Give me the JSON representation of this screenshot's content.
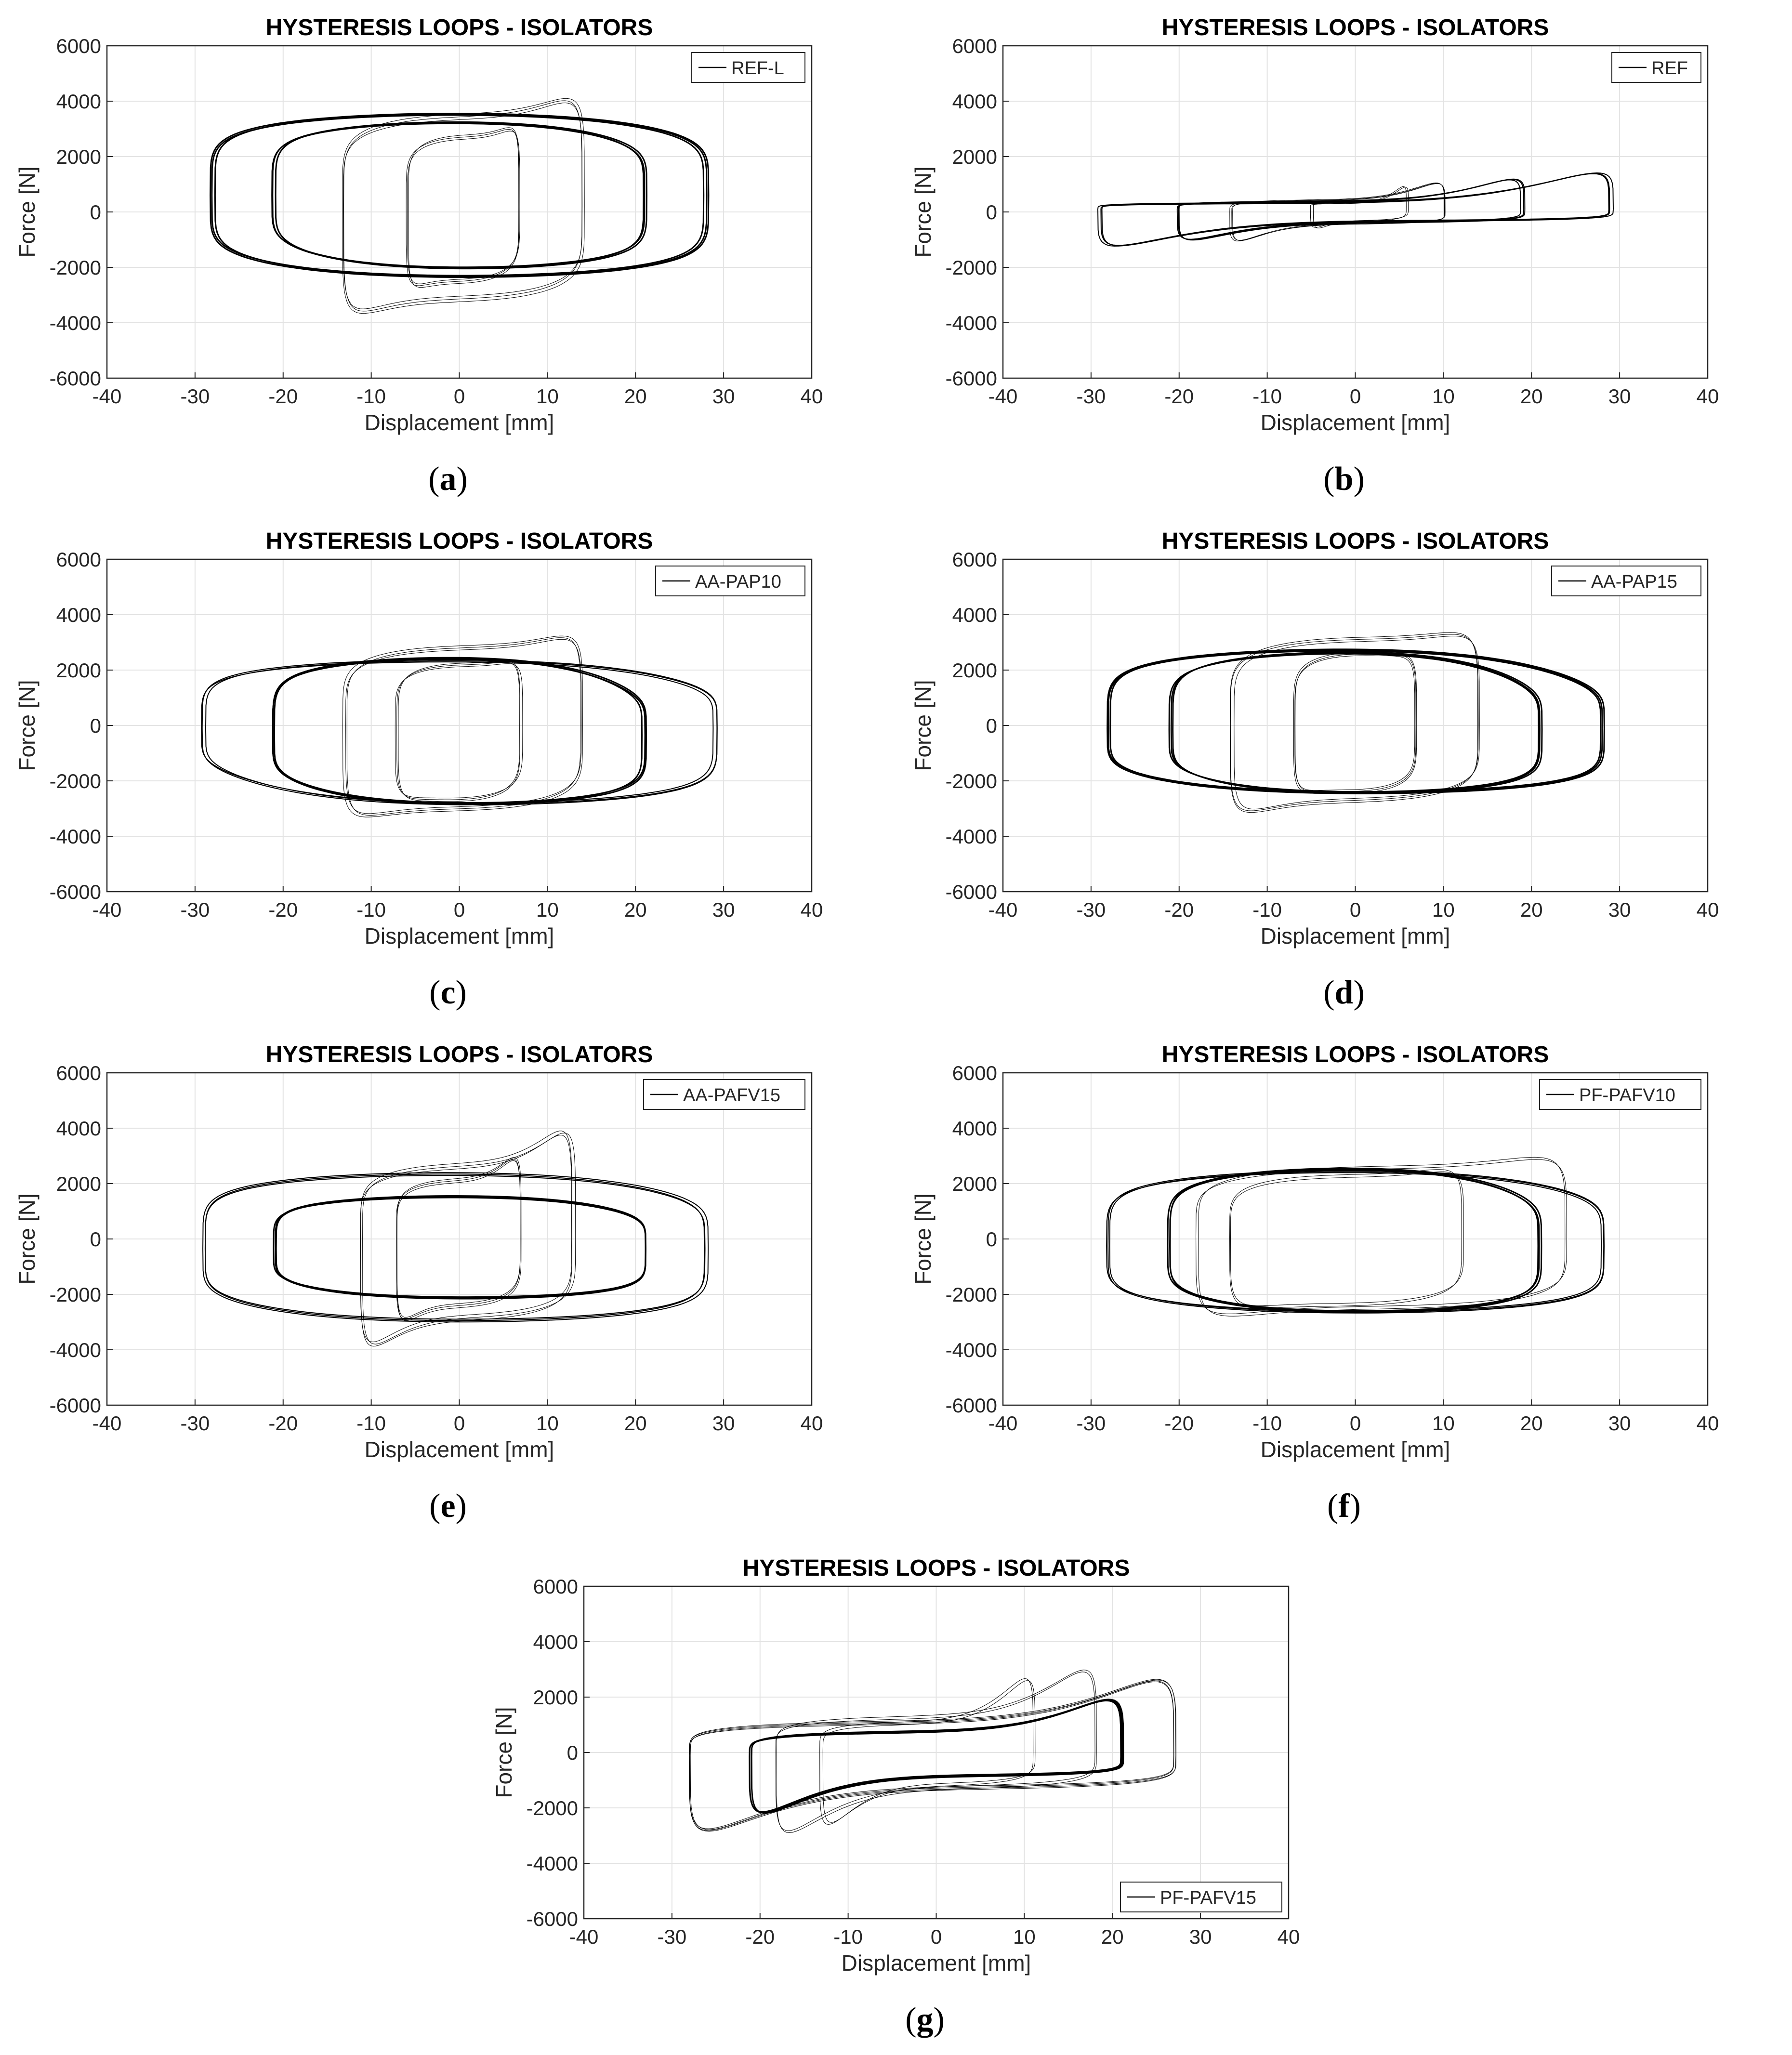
{
  "colors": {
    "line": "#000000",
    "grid": "#e3e3e3",
    "axis": "#262626",
    "background": "#ffffff"
  },
  "chart_data": [
    {
      "id": "a",
      "caption": "a",
      "type": "line",
      "title": "HYSTERESIS LOOPS - ISOLATORS",
      "xlabel": "Displacement [mm]",
      "ylabel": "Force [N]",
      "xlim": [
        -40,
        40
      ],
      "ylim": [
        -6000,
        6000
      ],
      "xticks": [
        -40,
        -30,
        -20,
        -10,
        0,
        10,
        20,
        30,
        40
      ],
      "yticks": [
        -6000,
        -4000,
        -2000,
        0,
        2000,
        4000,
        6000
      ],
      "grid": true,
      "legend_position": "top-right",
      "series": [
        {
          "name": "REF-L"
        }
      ],
      "loops": [
        {
          "dmax": 28,
          "dmin": -28,
          "upper": [
            3300,
            3500
          ],
          "lower": [
            -2100,
            -2300
          ],
          "count": 3,
          "jitter": 120,
          "weight": 3
        },
        {
          "dmax": 21,
          "dmin": -21,
          "upper": [
            2900,
            3200
          ],
          "lower": [
            -1700,
            -2000
          ],
          "count": 3,
          "jitter": 100,
          "weight": 3
        },
        {
          "dmax": 14,
          "dmin": -13,
          "upper": [
            5800,
            3300
          ],
          "lower": [
            -5300,
            -3000
          ],
          "count": 3,
          "jitter": 400,
          "weight": 1
        },
        {
          "dmax": 7,
          "dmin": -6,
          "upper": [
            4200,
            2600
          ],
          "lower": [
            -3800,
            -2400
          ],
          "count": 3,
          "jitter": 300,
          "weight": 1
        }
      ]
    },
    {
      "id": "b",
      "caption": "b",
      "type": "line",
      "title": "HYSTERESIS LOOPS - ISOLATORS",
      "xlabel": "Displacement [mm]",
      "ylabel": "Force [N]",
      "xlim": [
        -40,
        40
      ],
      "ylim": [
        -6000,
        6000
      ],
      "xticks": [
        -40,
        -30,
        -20,
        -10,
        0,
        10,
        20,
        30,
        40
      ],
      "yticks": [
        -6000,
        -4000,
        -2000,
        0,
        2000,
        4000,
        6000
      ],
      "grid": true,
      "legend_position": "top-right",
      "series": [
        {
          "name": "REF"
        }
      ],
      "loops": [
        {
          "dmax": 29,
          "dmin": -29,
          "upper": [
            2300,
            300
          ],
          "lower": [
            -2100,
            -300
          ],
          "count": 3,
          "jitter": 80,
          "weight": 2
        },
        {
          "dmax": 19,
          "dmin": -20,
          "upper": [
            1900,
            350
          ],
          "lower": [
            -1700,
            -350
          ],
          "count": 3,
          "jitter": 80,
          "weight": 2
        },
        {
          "dmax": 10,
          "dmin": -14,
          "upper": [
            1700,
            400
          ],
          "lower": [
            -1700,
            -400
          ],
          "count": 3,
          "jitter": 80,
          "weight": 1
        },
        {
          "dmax": 6,
          "dmin": -5,
          "upper": [
            1400,
            300
          ],
          "lower": [
            -1000,
            -300
          ],
          "count": 2,
          "jitter": 60,
          "weight": 1
        }
      ]
    },
    {
      "id": "c",
      "caption": "c",
      "type": "line",
      "title": "HYSTERESIS LOOPS - ISOLATORS",
      "xlabel": "Displacement [mm]",
      "ylabel": "Force [N]",
      "xlim": [
        -40,
        40
      ],
      "ylim": [
        -6000,
        6000
      ],
      "xticks": [
        -40,
        -30,
        -20,
        -10,
        0,
        10,
        20,
        30,
        40
      ],
      "yticks": [
        -6000,
        -4000,
        -2000,
        0,
        2000,
        4000,
        6000
      ],
      "grid": true,
      "legend_position": "top-right",
      "series": [
        {
          "name": "AA-PAP10"
        }
      ],
      "loops": [
        {
          "dmax": 29,
          "dmin": -29,
          "upper": [
            1800,
            2300
          ],
          "lower": [
            -2000,
            -2800
          ],
          "count": 3,
          "jitter": 150,
          "weight": 2
        },
        {
          "dmax": 21,
          "dmin": -21,
          "upper": [
            1600,
            2400
          ],
          "lower": [
            -2300,
            -2800
          ],
          "count": 3,
          "jitter": 120,
          "weight": 3
        },
        {
          "dmax": 14,
          "dmin": -13,
          "upper": [
            4600,
            2700
          ],
          "lower": [
            -4600,
            -2900
          ],
          "count": 3,
          "jitter": 300,
          "weight": 1
        },
        {
          "dmax": 7,
          "dmin": -7,
          "upper": [
            3200,
            2100
          ],
          "lower": [
            -3400,
            -2600
          ],
          "count": 3,
          "jitter": 250,
          "weight": 1
        }
      ]
    },
    {
      "id": "d",
      "caption": "d",
      "type": "line",
      "title": "HYSTERESIS LOOPS - ISOLATORS",
      "xlabel": "Displacement [mm]",
      "ylabel": "Force [N]",
      "xlim": [
        -40,
        40
      ],
      "ylim": [
        -6000,
        6000
      ],
      "xticks": [
        -40,
        -30,
        -20,
        -10,
        0,
        10,
        20,
        30,
        40
      ],
      "yticks": [
        -6000,
        -4000,
        -2000,
        0,
        2000,
        4000,
        6000
      ],
      "grid": true,
      "legend_position": "top-right",
      "series": [
        {
          "name": "AA-PAP15"
        }
      ],
      "loops": [
        {
          "dmax": 28,
          "dmin": -28,
          "upper": [
            1900,
            2700
          ],
          "lower": [
            -2100,
            -2400
          ],
          "count": 3,
          "jitter": 120,
          "weight": 3
        },
        {
          "dmax": 21,
          "dmin": -21,
          "upper": [
            1800,
            2600
          ],
          "lower": [
            -2100,
            -2400
          ],
          "count": 3,
          "jitter": 120,
          "weight": 3
        },
        {
          "dmax": 14,
          "dmin": -14,
          "upper": [
            4600,
            3000
          ],
          "lower": [
            -4500,
            -2600
          ],
          "count": 3,
          "jitter": 300,
          "weight": 1
        },
        {
          "dmax": 7,
          "dmin": -7,
          "upper": [
            3300,
            2500
          ],
          "lower": [
            -3200,
            -2300
          ],
          "count": 3,
          "jitter": 250,
          "weight": 1
        }
      ]
    },
    {
      "id": "e",
      "caption": "e",
      "type": "line",
      "title": "HYSTERESIS LOOPS - ISOLATORS",
      "xlabel": "Displacement [mm]",
      "ylabel": "Force [N]",
      "xlim": [
        -40,
        40
      ],
      "ylim": [
        -6000,
        6000
      ],
      "xticks": [
        -40,
        -30,
        -20,
        -10,
        0,
        10,
        20,
        30,
        40
      ],
      "yticks": [
        -6000,
        -4000,
        -2000,
        0,
        2000,
        4000,
        6000
      ],
      "grid": true,
      "legend_position": "top-right",
      "series": [
        {
          "name": "AA-PAFV15"
        }
      ],
      "loops": [
        {
          "dmax": 28,
          "dmin": -29,
          "upper": [
            1900,
            2300
          ],
          "lower": [
            -2600,
            -2900
          ],
          "count": 3,
          "jitter": 200,
          "weight": 2
        },
        {
          "dmax": 21,
          "dmin": -21,
          "upper": [
            1200,
            1500
          ],
          "lower": [
            -1900,
            -2100
          ],
          "count": 3,
          "jitter": 120,
          "weight": 3
        },
        {
          "dmax": 13,
          "dmin": -11,
          "upper": [
            5900,
            2500
          ],
          "lower": [
            -5800,
            -2700
          ],
          "count": 3,
          "jitter": 400,
          "weight": 1
        },
        {
          "dmax": 7,
          "dmin": -7,
          "upper": [
            4400,
            2000
          ],
          "lower": [
            -4300,
            -2300
          ],
          "count": 3,
          "jitter": 300,
          "weight": 1
        }
      ]
    },
    {
      "id": "f",
      "caption": "f",
      "type": "line",
      "title": "HYSTERESIS LOOPS - ISOLATORS",
      "xlabel": "Displacement [mm]",
      "ylabel": "Force [N]",
      "xlim": [
        -40,
        40
      ],
      "ylim": [
        -6000,
        6000
      ],
      "xticks": [
        -40,
        -30,
        -20,
        -10,
        0,
        10,
        20,
        30,
        40
      ],
      "yticks": [
        -6000,
        -4000,
        -2000,
        0,
        2000,
        4000,
        6000
      ],
      "grid": true,
      "legend_position": "top-right",
      "series": [
        {
          "name": "PF-PAFV10"
        }
      ],
      "loops": [
        {
          "dmax": 28,
          "dmin": -28,
          "upper": [
            2000,
            2400
          ],
          "lower": [
            -2500,
            -2600
          ],
          "count": 3,
          "jitter": 150,
          "weight": 2
        },
        {
          "dmax": 21,
          "dmin": -21,
          "upper": [
            1900,
            2500
          ],
          "lower": [
            -2400,
            -2600
          ],
          "count": 3,
          "jitter": 120,
          "weight": 3
        },
        {
          "dmax": 24,
          "dmin": -18,
          "upper": [
            4200,
            2500
          ],
          "lower": [
            -4000,
            -2400
          ],
          "count": 2,
          "jitter": 200,
          "weight": 1
        },
        {
          "dmax": 12,
          "dmin": -14,
          "upper": [
            3500,
            2200
          ],
          "lower": [
            -3400,
            -2300
          ],
          "count": 2,
          "jitter": 200,
          "weight": 1
        }
      ]
    },
    {
      "id": "g",
      "caption": "g",
      "type": "line",
      "title": "HYSTERESIS LOOPS - ISOLATORS",
      "xlabel": "Displacement [mm]",
      "ylabel": "Force [N]",
      "xlim": [
        -40,
        40
      ],
      "ylim": [
        -6000,
        6000
      ],
      "xticks": [
        -40,
        -30,
        -20,
        -10,
        0,
        10,
        20,
        30,
        40
      ],
      "yticks": [
        -6000,
        -4000,
        -2000,
        0,
        2000,
        4000,
        6000
      ],
      "grid": true,
      "legend_position": "bottom-right",
      "series": [
        {
          "name": "PF-PAFV15"
        }
      ],
      "loops": [
        {
          "dmax": 27,
          "dmin": -28,
          "upper": [
            4300,
            1000
          ],
          "lower": [
            -4500,
            -1200
          ],
          "count": 4,
          "jitter": 250,
          "weight": 1
        },
        {
          "dmax": 21,
          "dmin": -21,
          "upper": [
            3200,
            700
          ],
          "lower": [
            -3500,
            -800
          ],
          "count": 3,
          "jitter": 120,
          "weight": 3
        },
        {
          "dmax": 18,
          "dmin": -18,
          "upper": [
            4800,
            1200
          ],
          "lower": [
            -4700,
            -1200
          ],
          "count": 2,
          "jitter": 200,
          "weight": 1
        },
        {
          "dmax": 11,
          "dmin": -13,
          "upper": [
            4300,
            1000
          ],
          "lower": [
            -4200,
            -1100
          ],
          "count": 2,
          "jitter": 200,
          "weight": 1
        }
      ]
    }
  ]
}
